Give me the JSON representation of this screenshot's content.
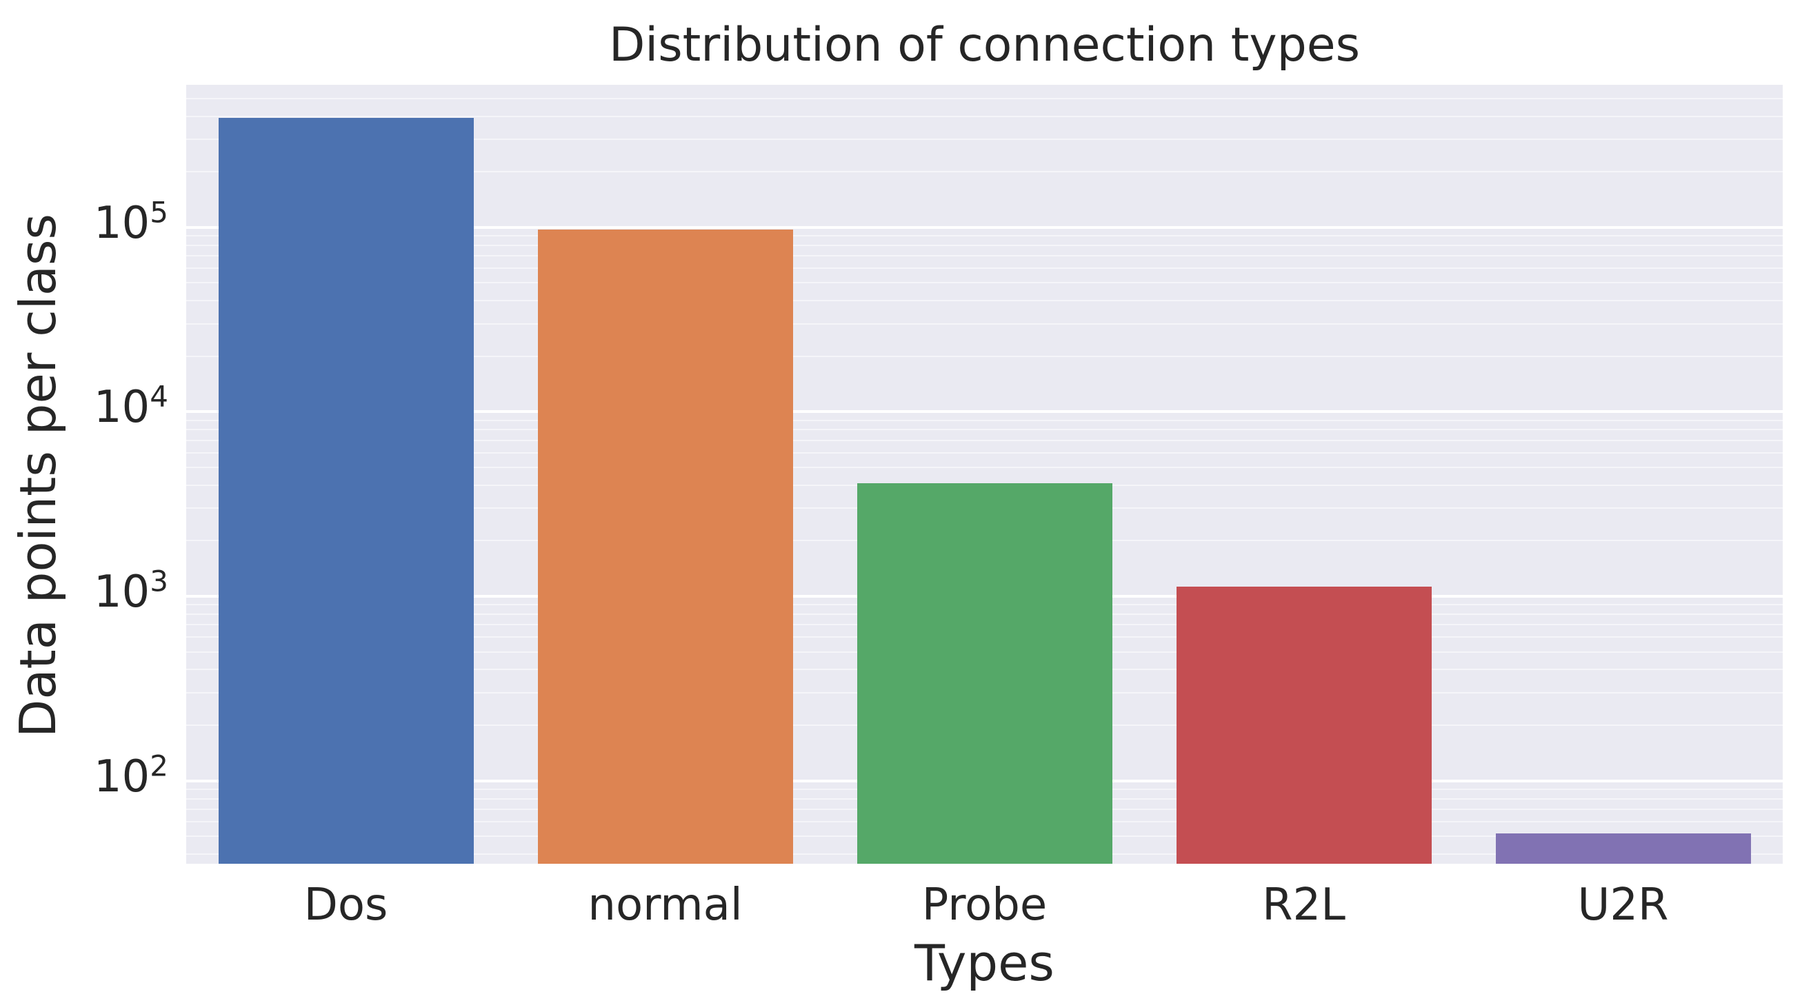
{
  "chart_data": {
    "type": "bar",
    "title": "Distribution of connection types",
    "xlabel": "Types",
    "ylabel": "Data points per class",
    "categories": [
      "Dos",
      "normal",
      "Probe",
      "R2L",
      "U2R"
    ],
    "values": [
      391458,
      97278,
      4107,
      1126,
      52
    ],
    "bar_colors": [
      "#4c72b0",
      "#dd8452",
      "#55a868",
      "#c44e52",
      "#8172b3"
    ],
    "yscale": "log",
    "ylim": [
      35.5,
      592000
    ],
    "y_tick_exponents": [
      5,
      4,
      3,
      2
    ],
    "grid": true,
    "legend_position": "none",
    "style": {
      "figure_background": "#ffffff",
      "plot_background": "#eaeaf2",
      "gridline_color": "#ffffff",
      "text_color": "#262626"
    }
  }
}
